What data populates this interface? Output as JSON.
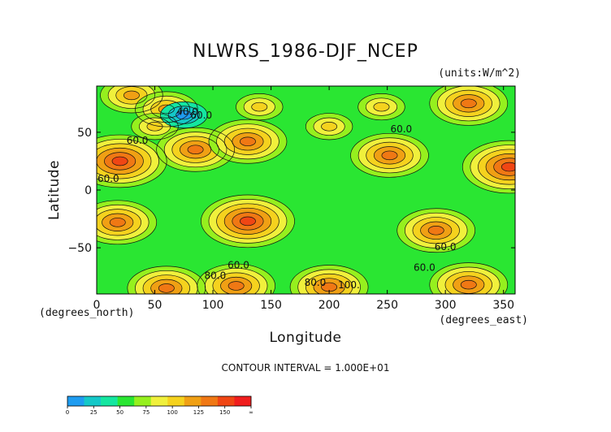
{
  "chart_data": {
    "type": "heatmap",
    "title": "NLWRS_1986-DJF_NCEP",
    "units": "(units:W/m^2)",
    "xlabel": "Longitude",
    "ylabel": "Latitude",
    "x_unit_label": "(degrees_east)",
    "y_unit_label": "(degrees_north)",
    "xlim": [
      0,
      360
    ],
    "ylim": [
      -90,
      90
    ],
    "x_ticks": [
      0,
      50,
      100,
      150,
      200,
      250,
      300,
      350
    ],
    "y_ticks": [
      50,
      0,
      -50
    ],
    "contour_interval_text": "CONTOUR INTERVAL = 1.000E+01",
    "contour_labels": [
      {
        "text": "40.0",
        "lon": 78,
        "lat": 65
      },
      {
        "text": "60.0",
        "lon": 90,
        "lat": 62
      },
      {
        "text": "60.0",
        "lon": 35,
        "lat": 40
      },
      {
        "text": "60.0",
        "lon": 262,
        "lat": 50
      },
      {
        "text": "60.0",
        "lon": 10,
        "lat": 7
      },
      {
        "text": "60.0",
        "lon": 300,
        "lat": -52
      },
      {
        "text": "60.0",
        "lon": 122,
        "lat": -68
      },
      {
        "text": "60.0",
        "lon": 282,
        "lat": -70
      },
      {
        "text": "80.0",
        "lon": 102,
        "lat": -77
      },
      {
        "text": "80.0",
        "lon": 188,
        "lat": -83
      },
      {
        "text": "100.",
        "lon": 217,
        "lat": -85
      }
    ],
    "colorbar": {
      "ticks": [
        "0",
        "25",
        "50",
        "75",
        "100",
        "125",
        "150",
        "∞"
      ],
      "colors": [
        "#1e9cf0",
        "#14c8c8",
        "#14e6a0",
        "#2ae632",
        "#96f01e",
        "#f0f03c",
        "#f5d21e",
        "#f0a014",
        "#f07814",
        "#f04614",
        "#f01e1e"
      ]
    },
    "field_blobs": [
      {
        "lon": 20,
        "lat": 25,
        "value": 135
      },
      {
        "lon": 355,
        "lat": 20,
        "value": 130
      },
      {
        "lon": 85,
        "lat": 35,
        "value": 120
      },
      {
        "lon": 130,
        "lat": 42,
        "value": 110
      },
      {
        "lon": 252,
        "lat": 30,
        "value": 115
      },
      {
        "lon": 18,
        "lat": -28,
        "value": 120
      },
      {
        "lon": 130,
        "lat": -27,
        "value": 125
      },
      {
        "lon": 292,
        "lat": -35,
        "value": 110
      },
      {
        "lon": 320,
        "lat": 75,
        "value": 115
      },
      {
        "lon": 30,
        "lat": 82,
        "value": 105
      },
      {
        "lon": 60,
        "lat": 70,
        "value": 95
      },
      {
        "lon": 140,
        "lat": 72,
        "value": 85
      },
      {
        "lon": 245,
        "lat": 72,
        "value": 85
      },
      {
        "lon": 200,
        "lat": 55,
        "value": 78
      },
      {
        "lon": 50,
        "lat": 55,
        "value": 85
      },
      {
        "lon": 120,
        "lat": -83,
        "value": 120
      },
      {
        "lon": 200,
        "lat": -84,
        "value": 115
      },
      {
        "lon": 320,
        "lat": -82,
        "value": 115
      },
      {
        "lon": 60,
        "lat": -85,
        "value": 110
      },
      {
        "lon": 75,
        "lat": 65,
        "value": 20
      }
    ],
    "background_value": 55
  }
}
